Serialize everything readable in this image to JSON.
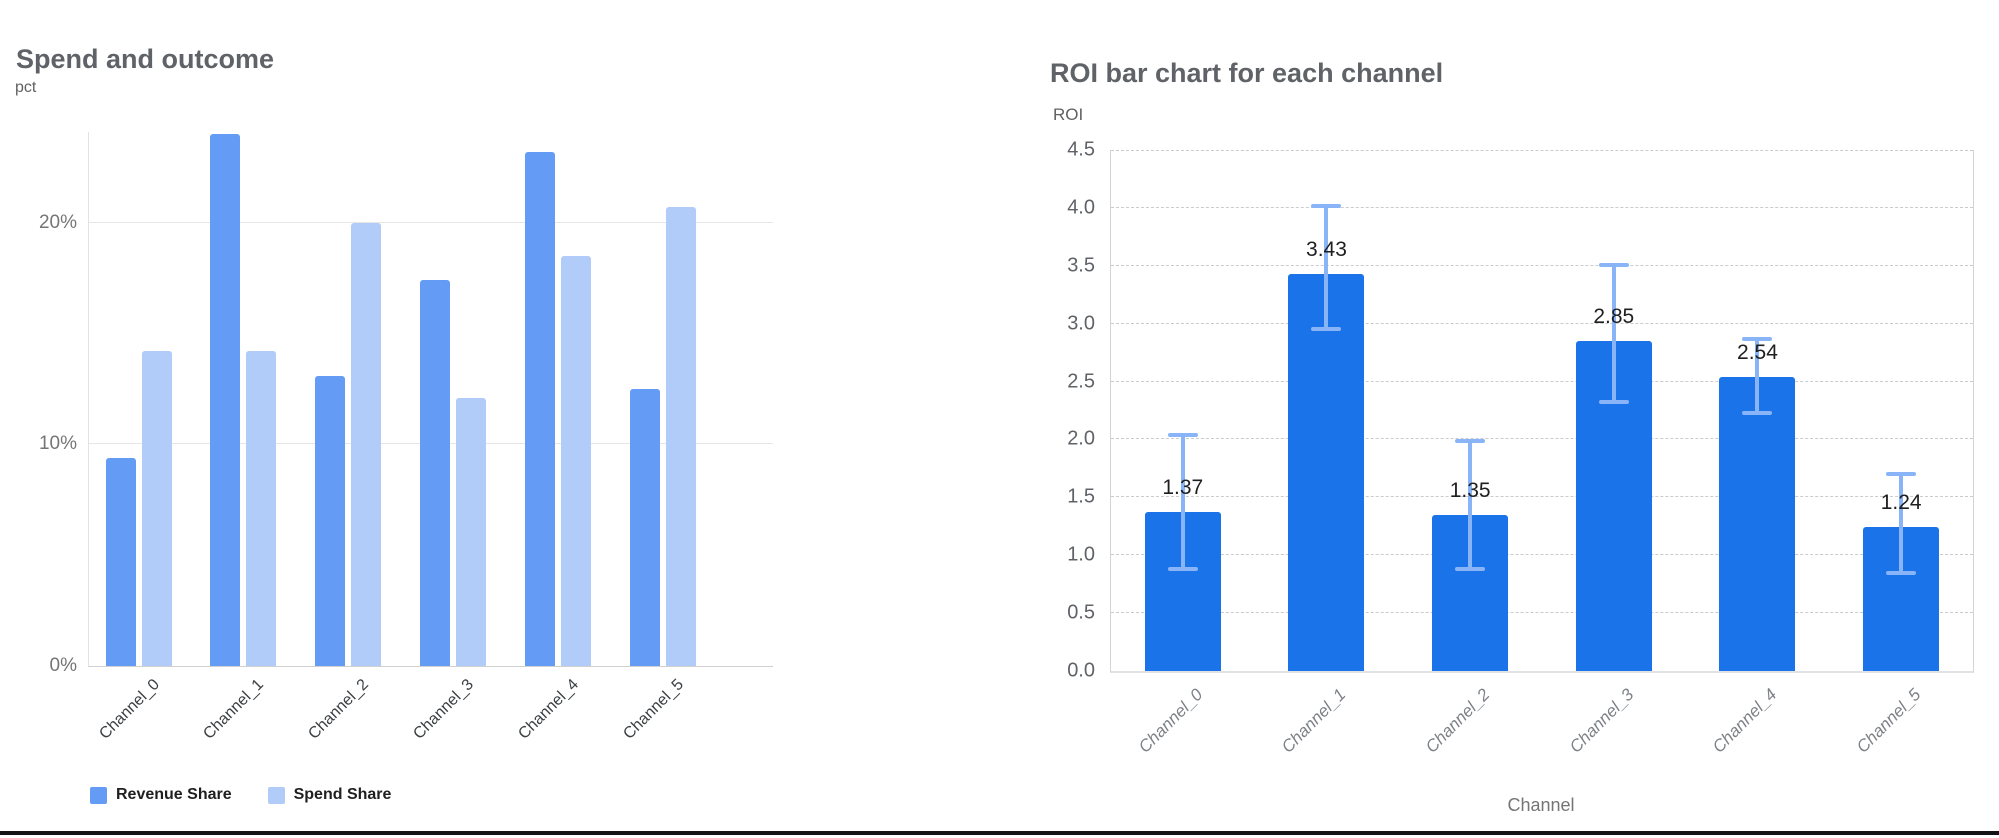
{
  "page": {
    "background": "#ffffff",
    "bottom_border_color": "#111316"
  },
  "chart_data": [
    {
      "type": "bar",
      "title": "Spend and outcome",
      "ylabel": "pct",
      "xlabel": "",
      "categories": [
        "Channel_0",
        "Channel_1",
        "Channel_2",
        "Channel_3",
        "Channel_4",
        "Channel_5"
      ],
      "series": [
        {
          "name": "Revenue Share",
          "color": "#649cf5",
          "values": [
            9.4,
            24.0,
            13.1,
            17.4,
            23.2,
            12.5
          ]
        },
        {
          "name": "Spend Share",
          "color": "#b1ccf8",
          "values": [
            14.2,
            14.2,
            20.0,
            12.1,
            18.5,
            20.7
          ]
        }
      ],
      "y_ticks": [
        {
          "label": "0%",
          "value": 0
        },
        {
          "label": "10%",
          "value": 10
        },
        {
          "label": "20%",
          "value": 20
        }
      ],
      "ylim": [
        0,
        24.1
      ],
      "grid": "solid",
      "legend_position": "bottom"
    },
    {
      "type": "bar",
      "title": "ROI bar chart for each channel",
      "ylabel": "ROI",
      "xlabel": "Channel",
      "categories": [
        "Channel_0",
        "Channel_1",
        "Channel_2",
        "Channel_3",
        "Channel_4",
        "Channel_5"
      ],
      "values": [
        1.37,
        3.43,
        1.35,
        2.85,
        2.54,
        1.24
      ],
      "value_labels": [
        "1.37",
        "3.43",
        "1.35",
        "2.85",
        "2.54",
        "1.24"
      ],
      "error_low": [
        0.88,
        2.95,
        0.88,
        2.32,
        2.23,
        0.85
      ],
      "error_high": [
        2.04,
        4.02,
        1.99,
        3.51,
        2.87,
        1.7
      ],
      "y_ticks": [
        {
          "label": "0.0",
          "value": 0.0
        },
        {
          "label": "0.5",
          "value": 0.5
        },
        {
          "label": "1.0",
          "value": 1.0
        },
        {
          "label": "1.5",
          "value": 1.5
        },
        {
          "label": "2.0",
          "value": 2.0
        },
        {
          "label": "2.5",
          "value": 2.5
        },
        {
          "label": "3.0",
          "value": 3.0
        },
        {
          "label": "3.5",
          "value": 3.5
        },
        {
          "label": "4.0",
          "value": 4.0
        },
        {
          "label": "4.5",
          "value": 4.5
        }
      ],
      "ylim": [
        0,
        4.5
      ],
      "bar_color": "#1a73e8",
      "error_color": "#8ab4f8",
      "grid": "dashed",
      "legend_position": "none"
    }
  ]
}
